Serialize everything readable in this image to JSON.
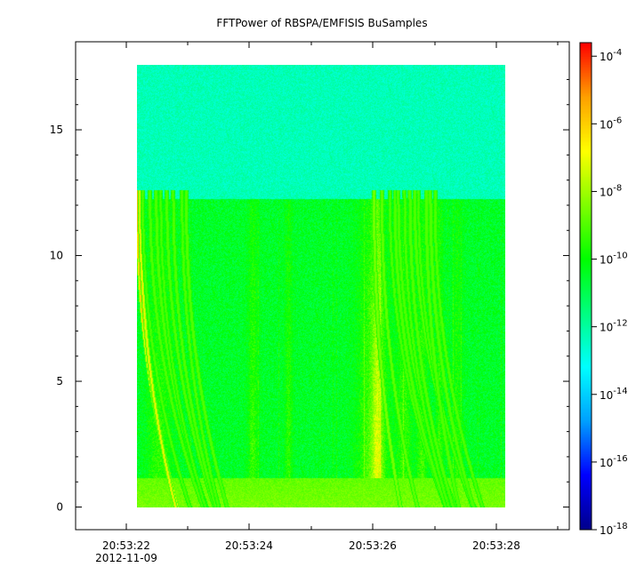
{
  "chart_data": {
    "type": "heatmap",
    "title": "FFTPower of RBSPA/EMFISIS  BuSamples",
    "xlabel": "",
    "ylabel": "",
    "x_ticks": [
      {
        "value": "20:53:22",
        "sub": "2012-11-09"
      },
      {
        "value": "20:53:24",
        "sub": ""
      },
      {
        "value": "20:53:26",
        "sub": ""
      },
      {
        "value": "20:53:28",
        "sub": ""
      }
    ],
    "y_ticks": [
      "0",
      "5",
      "10",
      "15"
    ],
    "ylim": [
      -0.9,
      18.5
    ],
    "data_extent": {
      "x": [
        "20:53:22.2",
        "20:53:28.2"
      ],
      "y": [
        0,
        17.5
      ]
    },
    "colorbar": {
      "scale": "log",
      "ticks": [
        {
          "base": "10",
          "exp": "-4"
        },
        {
          "base": "10",
          "exp": "-6"
        },
        {
          "base": "10",
          "exp": "-8"
        },
        {
          "base": "10",
          "exp": "-10"
        },
        {
          "base": "10",
          "exp": "-12"
        },
        {
          "base": "10",
          "exp": "-14"
        },
        {
          "base": "10",
          "exp": "-16"
        },
        {
          "base": "10",
          "exp": "-18"
        }
      ],
      "log_range": [
        -18,
        -3.6
      ]
    },
    "features": {
      "background_level_log10": -10.5,
      "upper_band_level_log10": -12.3,
      "band_edge_y": 12.2,
      "low_freq_band_y": 1.2,
      "low_freq_level_log10": -8.8
    }
  },
  "colors": {
    "colormap": [
      "#00008c",
      "#0000ff",
      "#00a0ff",
      "#00ffff",
      "#00ff80",
      "#00ff00",
      "#80ff00",
      "#ffff00",
      "#ffa000",
      "#ff0000"
    ]
  }
}
